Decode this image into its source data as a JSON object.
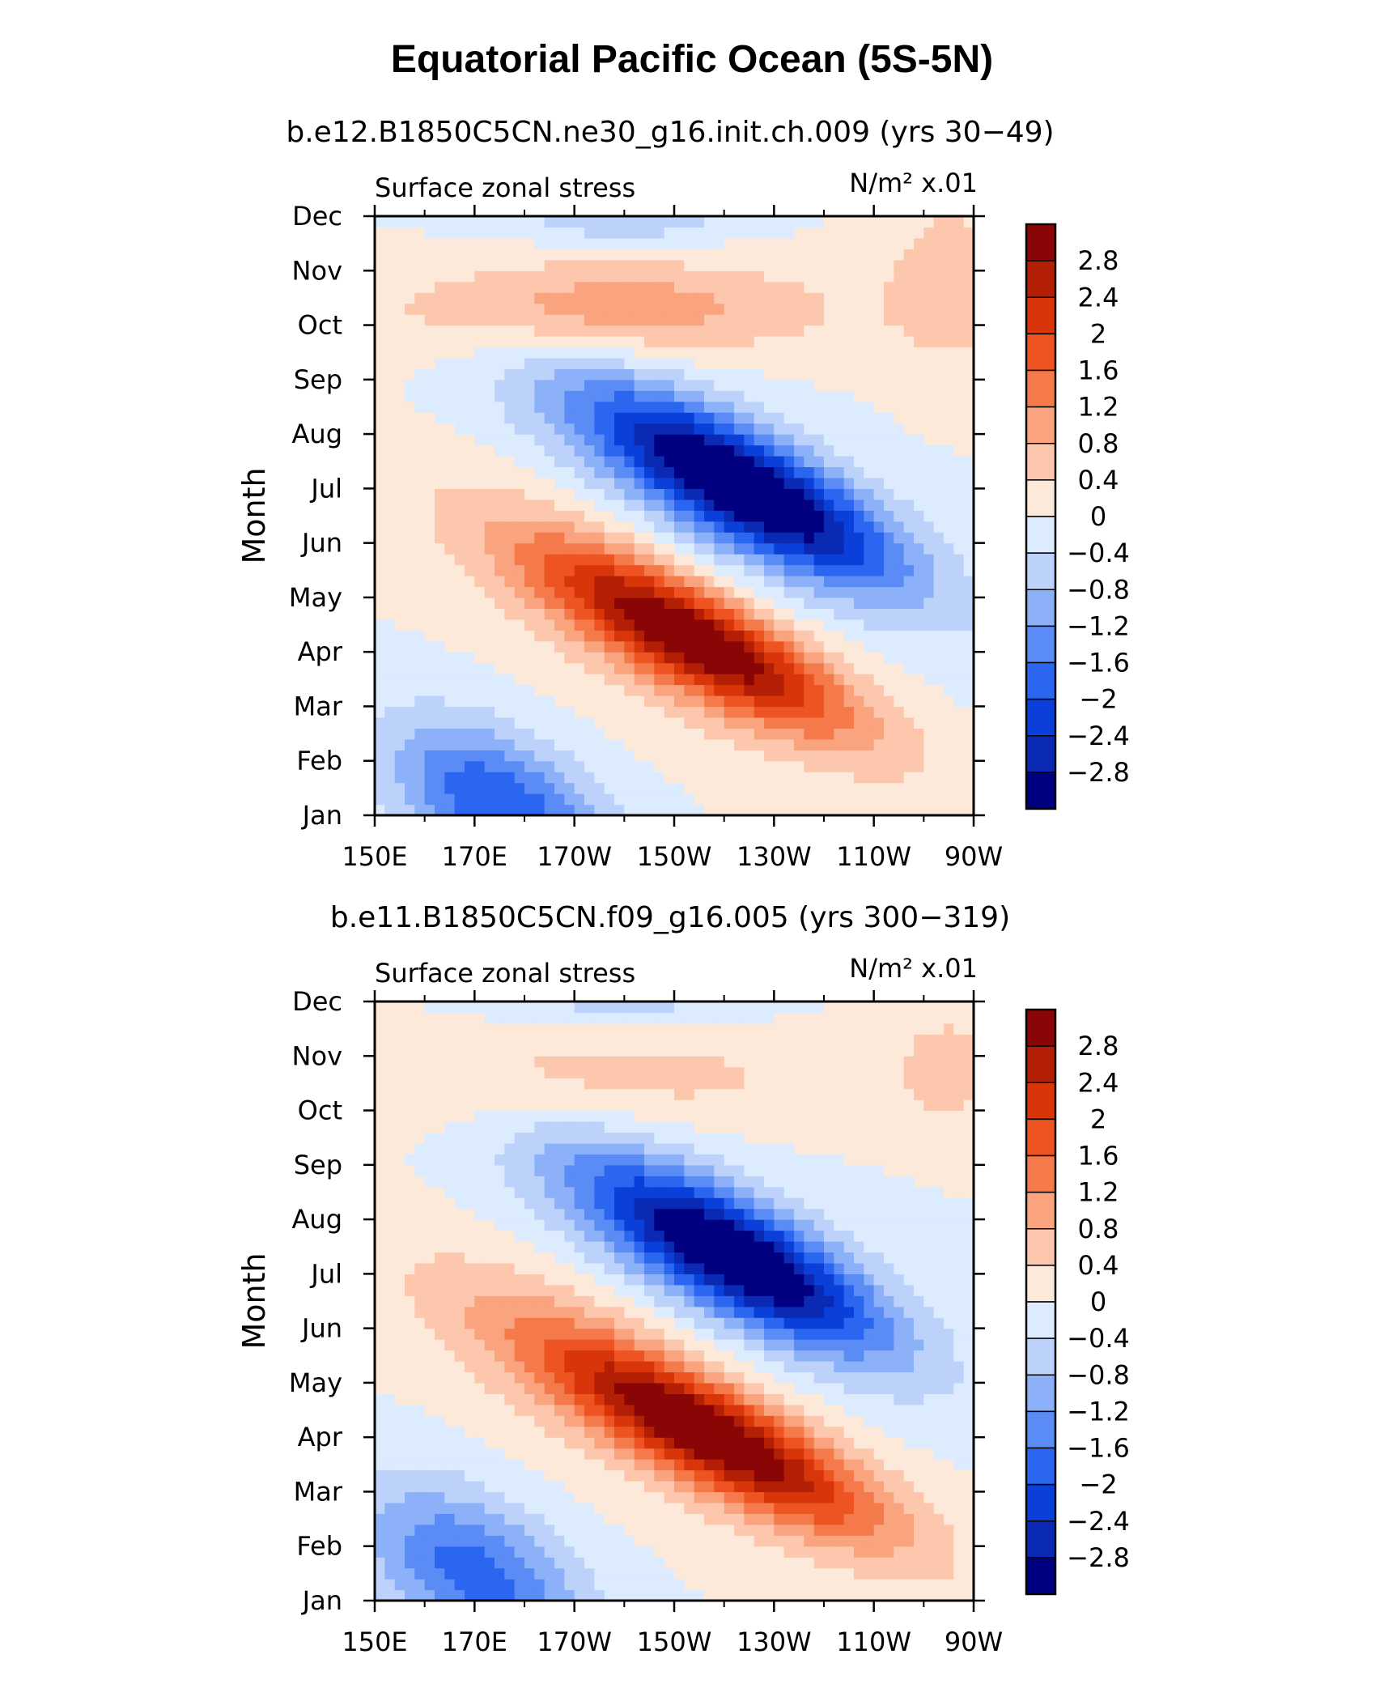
{
  "title": "Equatorial Pacific Ocean (5S-5N)",
  "chart_data": [
    {
      "type": "heatmap",
      "subtitle": "b.e12.B1850C5CN.ne30_g16.init.ch.009 (yrs 30−49)",
      "left_label": "Surface zonal stress",
      "right_label": "N/m² x.01",
      "ylabel": "Month",
      "xlabel": "",
      "x_ticks": [
        "150E",
        "170E",
        "170W",
        "150W",
        "130W",
        "110W",
        "90W"
      ],
      "x_range_lon_deg_east": [
        150,
        270
      ],
      "y_ticks": [
        "Jan",
        "Feb",
        "Mar",
        "Apr",
        "May",
        "Jun",
        "Jul",
        "Aug",
        "Sep",
        "Oct",
        "Nov",
        "Dec"
      ],
      "features": [
        {
          "lon": 215,
          "month": 4.2,
          "value": 2.5,
          "sx": 30,
          "sy": 0.9,
          "tilt": -0.045
        },
        {
          "lon": 205,
          "month": 4.6,
          "value": 1.0,
          "sx": 40,
          "sy": 1.5,
          "tilt": -0.045
        },
        {
          "lon": 225,
          "month": 7.0,
          "value": -2.8,
          "sx": 30,
          "sy": 1.0,
          "tilt": -0.045
        },
        {
          "lon": 215,
          "month": 7.2,
          "value": -1.0,
          "sx": 40,
          "sy": 1.6,
          "tilt": -0.045
        },
        {
          "lon": 175,
          "month": 1.2,
          "value": -2.0,
          "sx": 22,
          "sy": 1.3,
          "tilt": -0.035
        },
        {
          "lon": 195,
          "month": 10.3,
          "value": 1.1,
          "sx": 45,
          "sy": 0.9,
          "tilt": 0.0
        },
        {
          "lon": 265,
          "month": 10.8,
          "value": 0.7,
          "sx": 12,
          "sy": 1.5,
          "tilt": 0.0
        },
        {
          "lon": 200,
          "month": 12.0,
          "value": -0.8,
          "sx": 22,
          "sy": 0.5,
          "tilt": 0.0
        }
      ]
    },
    {
      "type": "heatmap",
      "subtitle": "b.e11.B1850C5CN.f09_g16.005 (yrs 300−319)",
      "left_label": "Surface zonal stress",
      "right_label": "N/m² x.01",
      "ylabel": "Month",
      "xlabel": "",
      "x_ticks": [
        "150E",
        "170E",
        "170W",
        "150W",
        "130W",
        "110W",
        "90W"
      ],
      "x_range_lon_deg_east": [
        150,
        270
      ],
      "y_ticks": [
        "Jan",
        "Feb",
        "Mar",
        "Apr",
        "May",
        "Jun",
        "Jul",
        "Aug",
        "Sep",
        "Oct",
        "Nov",
        "Dec"
      ],
      "features": [
        {
          "lon": 218,
          "month": 4.0,
          "value": 2.5,
          "sx": 32,
          "sy": 0.9,
          "tilt": -0.045
        },
        {
          "lon": 205,
          "month": 4.7,
          "value": 1.1,
          "sx": 45,
          "sy": 1.5,
          "tilt": -0.045
        },
        {
          "lon": 223,
          "month": 7.3,
          "value": -2.7,
          "sx": 28,
          "sy": 1.0,
          "tilt": -0.045
        },
        {
          "lon": 215,
          "month": 7.5,
          "value": -1.0,
          "sx": 40,
          "sy": 1.6,
          "tilt": -0.045
        },
        {
          "lon": 170,
          "month": 1.5,
          "value": -1.8,
          "sx": 22,
          "sy": 1.4,
          "tilt": -0.035
        },
        {
          "lon": 190,
          "month": 10.6,
          "value": 0.6,
          "sx": 55,
          "sy": 1.0,
          "tilt": 0.0
        },
        {
          "lon": 265,
          "month": 10.8,
          "value": 0.6,
          "sx": 10,
          "sy": 1.0,
          "tilt": 0.0
        },
        {
          "lon": 200,
          "month": 12.0,
          "value": -0.6,
          "sx": 25,
          "sy": 0.5,
          "tilt": 0.0
        }
      ]
    }
  ],
  "colorbar": {
    "labels": [
      "2.8",
      "2.4",
      "2",
      "1.6",
      "1.2",
      "0.8",
      "0.4",
      "0",
      "−0.4",
      "−0.8",
      "−1.2",
      "−1.6",
      "−2",
      "−2.4",
      "−2.8"
    ],
    "levels": [
      -2.8,
      -2.4,
      -2.0,
      -1.6,
      -1.2,
      -0.8,
      -0.4,
      0,
      0.4,
      0.8,
      1.2,
      1.6,
      2.0,
      2.4,
      2.8
    ],
    "colors_low_to_high": [
      "#000080",
      "#0a2ab4",
      "#0a3fd9",
      "#2a66f0",
      "#5b8cf5",
      "#8cb1f9",
      "#bcd2fb",
      "#dcebfd",
      "#fde9d9",
      "#fcc7ad",
      "#f9a47f",
      "#f47a4c",
      "#ee5322",
      "#d8360a",
      "#b31f04",
      "#8a0505"
    ]
  }
}
